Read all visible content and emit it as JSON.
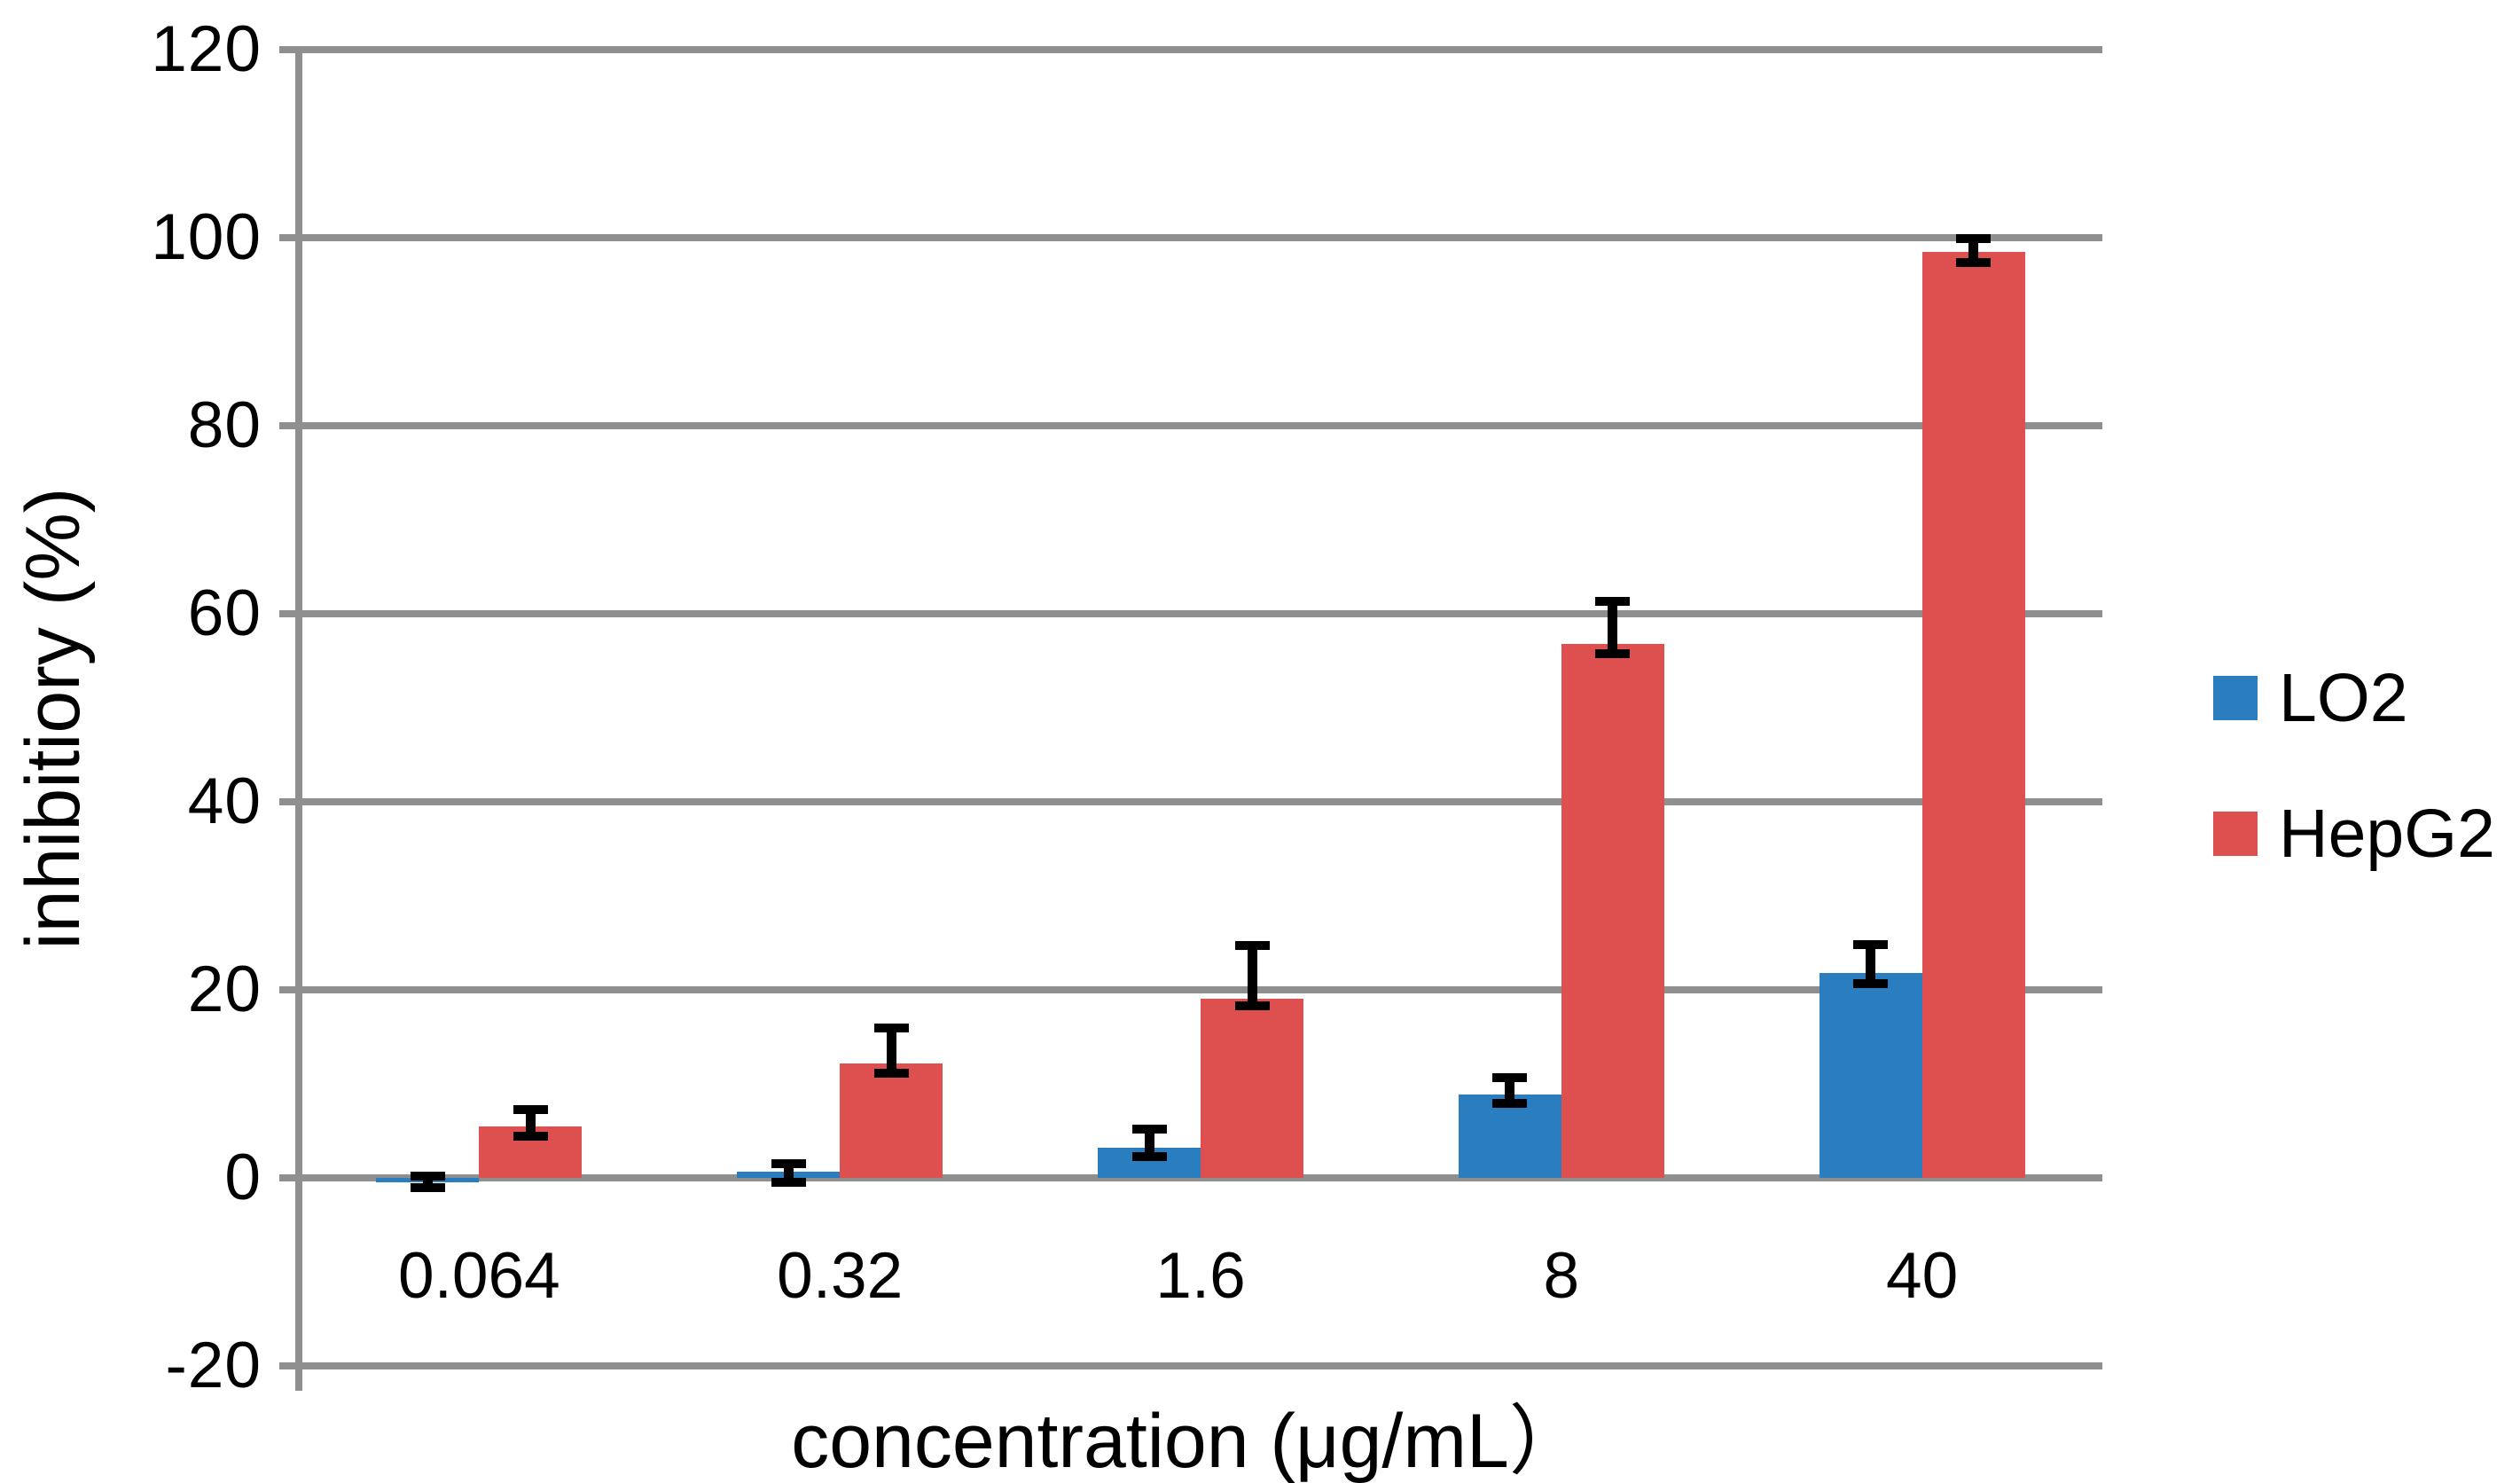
{
  "chart_data": {
    "type": "bar",
    "title": "",
    "categories": [
      "0.064",
      "0.32",
      "1.6",
      "8",
      "40"
    ],
    "series": [
      {
        "name": "LO2",
        "color": "#2A7DBF",
        "values": [
          -0.5,
          0.7,
          3.2,
          8.9,
          21.8
        ],
        "err_up": [
          0.7,
          0.8,
          2.0,
          1.8,
          3.0
        ],
        "err_down": [
          0.5,
          1.2,
          0.9,
          1.0,
          1.1
        ]
      },
      {
        "name": "HepG2",
        "color": "#DE4F4F",
        "values": [
          5.5,
          12.2,
          19.1,
          56.8,
          98.5
        ],
        "err_up": [
          1.8,
          3.7,
          5.6,
          4.5,
          1.4
        ],
        "err_down": [
          1.1,
          1.1,
          0.8,
          1.0,
          1.1
        ]
      }
    ],
    "xlabel": "concentration (μg/mL）",
    "ylabel": "inhibitiory (%)",
    "ylim": [
      -20,
      120
    ],
    "ytick_step": 20,
    "yticks": [
      120,
      100,
      80,
      60,
      40,
      20,
      0,
      -20
    ],
    "grid": true,
    "legend_position": "right",
    "error_bars": true
  },
  "colors": {
    "grid_gray": "#8F8F8F",
    "error_bar_black": "#000000",
    "background": "#FFFFFF"
  }
}
